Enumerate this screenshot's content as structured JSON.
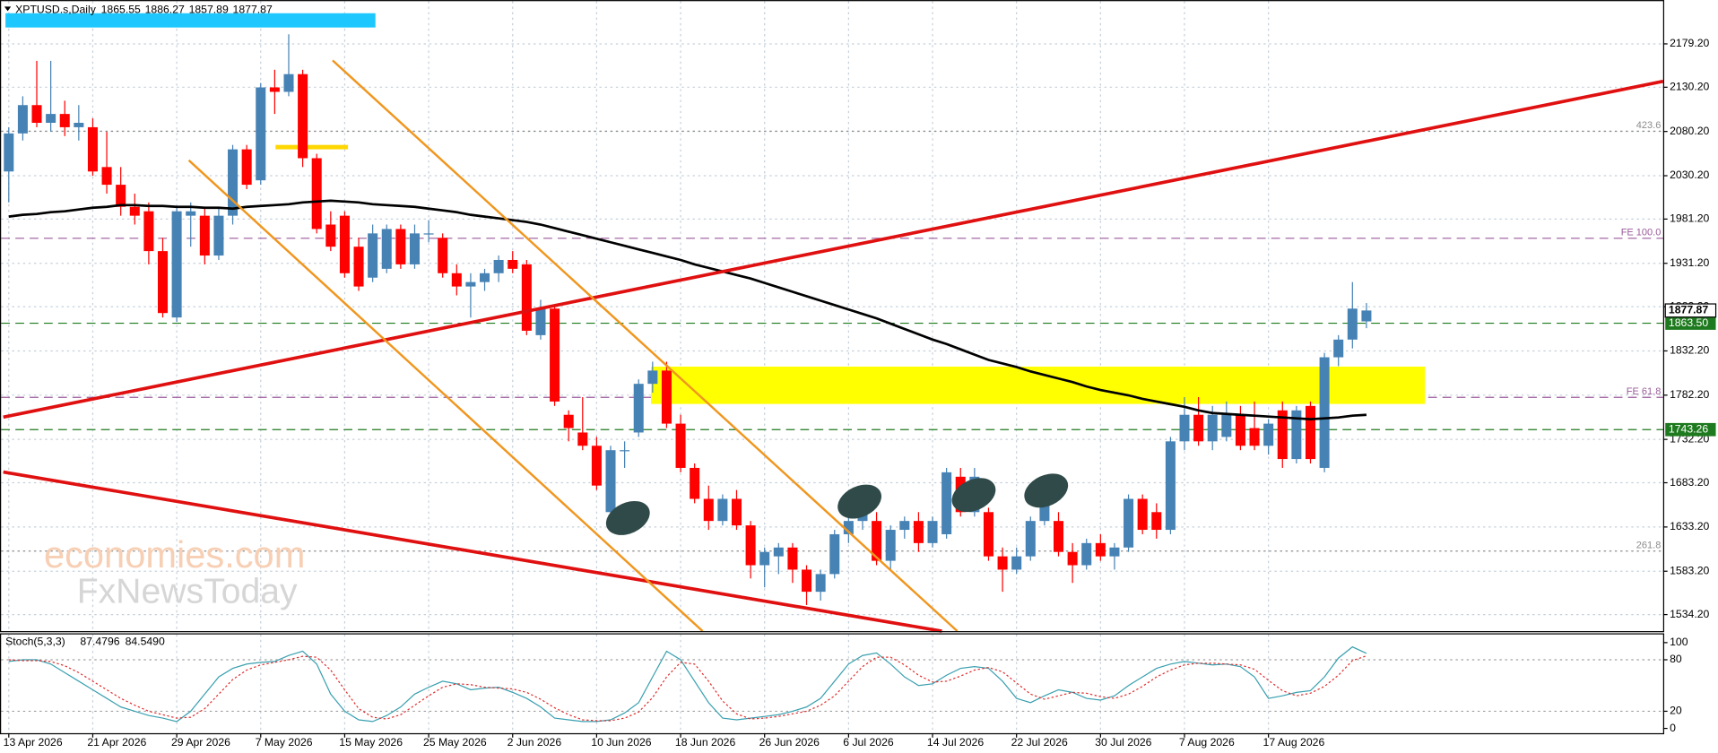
{
  "chart_data": {
    "type": "candlestick",
    "title": "XPTUSD.s,Daily",
    "up_color": "#4682b4",
    "down_color": "#ff0000",
    "grid": true,
    "ylim": [
      1518,
      2225
    ],
    "yticks": [
      {
        "value": 2179.2,
        "label": "2179.20"
      },
      {
        "value": 2130.2,
        "label": "2130.20"
      },
      {
        "value": 2080.2,
        "label": "2080.20"
      },
      {
        "value": 2030.2,
        "label": "2030.20"
      },
      {
        "value": 1981.2,
        "label": "1981.20"
      },
      {
        "value": 1931.2,
        "label": "1931.20"
      },
      {
        "value": 1882.2,
        "label": "1882.20"
      },
      {
        "value": 1832.2,
        "label": "1832.20"
      },
      {
        "value": 1782.2,
        "label": "1782.20"
      },
      {
        "value": 1732.2,
        "label": "1732.20"
      },
      {
        "value": 1683.2,
        "label": "1683.20"
      },
      {
        "value": 1633.2,
        "label": "1633.20"
      },
      {
        "value": 1583.2,
        "label": "1583.20"
      },
      {
        "value": 1534.2,
        "label": "1534.20"
      }
    ],
    "categories": [
      "13 Apr 2026",
      null,
      null,
      null,
      null,
      null,
      "21 Apr 2026",
      null,
      null,
      null,
      null,
      null,
      "29 Apr 2026",
      null,
      null,
      null,
      null,
      null,
      "7 May 2026",
      null,
      null,
      null,
      null,
      null,
      "15 May 2026",
      null,
      null,
      null,
      null,
      null,
      "25 May 2026",
      null,
      null,
      null,
      null,
      null,
      "2 Jun 2026",
      null,
      null,
      null,
      null,
      null,
      "10 Jun 2026",
      null,
      null,
      null,
      null,
      null,
      "18 Jun 2026",
      null,
      null,
      null,
      null,
      null,
      "26 Jun 2026",
      null,
      null,
      null,
      null,
      null,
      "6 Jul 2026",
      null,
      null,
      null,
      null,
      null,
      "14 Jul 2026",
      null,
      null,
      null,
      null,
      null,
      "22 Jul 2026",
      null,
      null,
      null,
      null,
      null,
      "30 Jul 2026",
      null,
      null,
      null,
      null,
      null,
      "7 Aug 2026",
      null,
      null,
      null,
      null,
      null,
      "17 Aug 2026",
      null,
      null,
      null,
      null,
      null,
      null,
      null
    ],
    "open": [
      2035,
      2078,
      2110,
      2090,
      2100,
      2085,
      2085,
      2040,
      2020,
      1995,
      1990,
      1945,
      1870,
      1985,
      1985,
      1940,
      1985,
      2060,
      2025,
      2130,
      2125,
      2145,
      2050,
      1975,
      1985,
      1950,
      1915,
      1925,
      1970,
      1930,
      1965,
      1960,
      1920,
      1905,
      1910,
      1920,
      1935,
      1930,
      1850,
      1880,
      1760,
      1740,
      1725,
      1650,
      1720,
      1740,
      1795,
      1810,
      1750,
      1700,
      1665,
      1640,
      1665,
      1635,
      1590,
      1600,
      1610,
      1585,
      1560,
      1580,
      1625,
      1640,
      1640,
      1595,
      1630,
      1640,
      1615,
      1625,
      1690,
      1650,
      1650,
      1600,
      1585,
      1600,
      1640,
      1640,
      1605,
      1590,
      1615,
      1600,
      1610,
      1665,
      1650,
      1630,
      1730,
      1760,
      1730,
      1735,
      1760,
      1745,
      1725,
      1765,
      1710,
      1770,
      1700,
      1825,
      1845,
      1865.55
    ],
    "high": [
      2085,
      2120,
      2160,
      2160,
      2115,
      2110,
      2095,
      2080,
      2040,
      2010,
      2000,
      1960,
      1995,
      2000,
      1995,
      1995,
      2065,
      2065,
      2135,
      2150,
      2190,
      2150,
      2055,
      1990,
      1990,
      1960,
      1975,
      1975,
      1975,
      1975,
      1980,
      1965,
      1930,
      1920,
      1925,
      1940,
      1945,
      1935,
      1890,
      1885,
      1765,
      1780,
      1735,
      1725,
      1730,
      1800,
      1820,
      1820,
      1760,
      1705,
      1680,
      1670,
      1675,
      1640,
      1610,
      1615,
      1615,
      1590,
      1585,
      1630,
      1645,
      1660,
      1650,
      1635,
      1645,
      1650,
      1645,
      1700,
      1700,
      1700,
      1655,
      1610,
      1610,
      1645,
      1670,
      1650,
      1615,
      1620,
      1625,
      1615,
      1670,
      1670,
      1660,
      1735,
      1780,
      1780,
      1770,
      1775,
      1770,
      1775,
      1755,
      1775,
      1770,
      1775,
      1830,
      1850,
      1910,
      1886.27
    ],
    "low": [
      2000,
      2070,
      2085,
      2080,
      2075,
      2070,
      2030,
      2010,
      1985,
      1975,
      1930,
      1870,
      1865,
      1950,
      1930,
      1935,
      1975,
      2015,
      2020,
      2100,
      2120,
      2040,
      1965,
      1945,
      1915,
      1900,
      1910,
      1920,
      1925,
      1925,
      1955,
      1915,
      1895,
      1870,
      1900,
      1910,
      1920,
      1850,
      1845,
      1770,
      1730,
      1720,
      1675,
      1640,
      1700,
      1735,
      1785,
      1745,
      1695,
      1660,
      1630,
      1635,
      1630,
      1575,
      1565,
      1580,
      1570,
      1545,
      1550,
      1575,
      1615,
      1630,
      1590,
      1585,
      1620,
      1605,
      1610,
      1620,
      1645,
      1645,
      1595,
      1560,
      1580,
      1595,
      1635,
      1600,
      1570,
      1585,
      1595,
      1585,
      1605,
      1625,
      1620,
      1625,
      1720,
      1725,
      1720,
      1730,
      1720,
      1720,
      1715,
      1700,
      1705,
      1705,
      1695,
      1815,
      1835,
      1857.89
    ],
    "close": [
      2078,
      2110,
      2090,
      2100,
      2085,
      2090,
      2035,
      2020,
      1995,
      1985,
      1945,
      1875,
      1990,
      1990,
      1940,
      1985,
      2060,
      2020,
      2130,
      2125,
      2145,
      2050,
      1970,
      1950,
      1920,
      1905,
      1965,
      1970,
      1930,
      1965,
      1965,
      1920,
      1905,
      1910,
      1920,
      1935,
      1925,
      1855,
      1880,
      1775,
      1745,
      1725,
      1680,
      1720,
      1720,
      1795,
      1810,
      1750,
      1700,
      1665,
      1640,
      1665,
      1635,
      1590,
      1605,
      1610,
      1585,
      1560,
      1580,
      1625,
      1640,
      1650,
      1595,
      1630,
      1640,
      1615,
      1640,
      1695,
      1650,
      1690,
      1600,
      1585,
      1600,
      1640,
      1660,
      1605,
      1590,
      1615,
      1600,
      1610,
      1665,
      1630,
      1630,
      1730,
      1760,
      1730,
      1760,
      1760,
      1725,
      1725,
      1750,
      1710,
      1765,
      1710,
      1825,
      1845,
      1880,
      1877.87
    ],
    "ma_values": [
      1984,
      1986,
      1987,
      1989,
      1990,
      1992,
      1994,
      1995,
      1997,
      1997,
      1996,
      1996,
      1995,
      1995,
      1994,
      1994,
      1993,
      1995,
      1996,
      1997,
      1998,
      2000,
      2001,
      2002,
      2001,
      2000,
      1998,
      1997,
      1996,
      1995,
      1993,
      1991,
      1989,
      1986,
      1984,
      1982,
      1980,
      1978,
      1975,
      1971,
      1967,
      1963,
      1959,
      1955,
      1951,
      1947,
      1943,
      1939,
      1935,
      1930,
      1926,
      1922,
      1918,
      1914,
      1909,
      1904,
      1899,
      1894,
      1889,
      1884,
      1879,
      1874,
      1869,
      1863,
      1857,
      1851,
      1845,
      1840,
      1834,
      1828,
      1822,
      1818,
      1814,
      1809,
      1805,
      1801,
      1797,
      1792,
      1788,
      1785,
      1782,
      1778,
      1775,
      1772,
      1769,
      1765,
      1762,
      1761,
      1760,
      1759,
      1758,
      1757,
      1756,
      1755,
      1756,
      1757,
      1759,
      1760
    ],
    "levels": [
      {
        "label": "423.6",
        "value": 2080.5,
        "color": "#8c8c8c",
        "dash": "2 3"
      },
      {
        "label": "FE 100.0",
        "value": 1959.5,
        "color": "#9a5a9a",
        "dash": "8 5"
      },
      {
        "label": "FE 61.8",
        "value": 1779.7,
        "color": "#9a5a9a",
        "dash": "8 5"
      },
      {
        "label": "261.8",
        "value": 1606,
        "color": "#8c8c8c",
        "dash": "2 3"
      }
    ],
    "price_tags": [
      {
        "label": "1863.50",
        "value": 1863.5,
        "color": "#1e7a1e"
      },
      {
        "label": "1743.26",
        "value": 1743.26,
        "color": "#1e7a1e"
      }
    ],
    "watermark": [
      "economies.com",
      "FxNewsToday"
    ],
    "stoch": {
      "title": "Stoch(5,3,3)",
      "header_values": [
        "87.4796",
        "84.5490"
      ],
      "ylim": [
        -3,
        107
      ],
      "yticks": [
        0,
        20,
        80,
        100
      ],
      "levels": [
        20,
        80
      ],
      "main_color": "#3aa0b0",
      "signal_color": "#e03030",
      "main": [
        78,
        80,
        80,
        75,
        65,
        55,
        45,
        35,
        25,
        20,
        15,
        12,
        8,
        20,
        40,
        60,
        70,
        75,
        77,
        78,
        85,
        90,
        75,
        40,
        20,
        10,
        8,
        15,
        25,
        40,
        48,
        55,
        52,
        45,
        47,
        48,
        42,
        35,
        25,
        12,
        10,
        8,
        8,
        10,
        18,
        30,
        60,
        90,
        80,
        55,
        30,
        12,
        10,
        12,
        14,
        16,
        20,
        25,
        35,
        55,
        75,
        85,
        88,
        75,
        60,
        50,
        52,
        62,
        70,
        72,
        70,
        55,
        35,
        30,
        38,
        45,
        42,
        35,
        33,
        38,
        50,
        60,
        70,
        75,
        78,
        76,
        74,
        75,
        72,
        60,
        35,
        38,
        42,
        44,
        60,
        82,
        95,
        87.4796
      ],
      "signal": [
        80,
        79,
        79,
        78,
        73,
        65,
        55,
        45,
        35,
        27,
        20,
        16,
        12,
        13,
        23,
        40,
        57,
        68,
        74,
        77,
        80,
        84,
        83,
        68,
        45,
        23,
        13,
        11,
        16,
        27,
        38,
        48,
        52,
        51,
        48,
        47,
        46,
        42,
        34,
        24,
        16,
        10,
        9,
        9,
        12,
        19,
        36,
        60,
        77,
        75,
        55,
        32,
        17,
        11,
        12,
        14,
        17,
        20,
        27,
        38,
        55,
        72,
        83,
        83,
        74,
        62,
        54,
        55,
        61,
        68,
        71,
        66,
        53,
        40,
        34,
        38,
        42,
        41,
        37,
        35,
        40,
        49,
        60,
        68,
        74,
        76,
        76,
        75,
        74,
        69,
        56,
        44,
        38,
        41,
        49,
        62,
        79,
        84.549
      ]
    }
  }
}
